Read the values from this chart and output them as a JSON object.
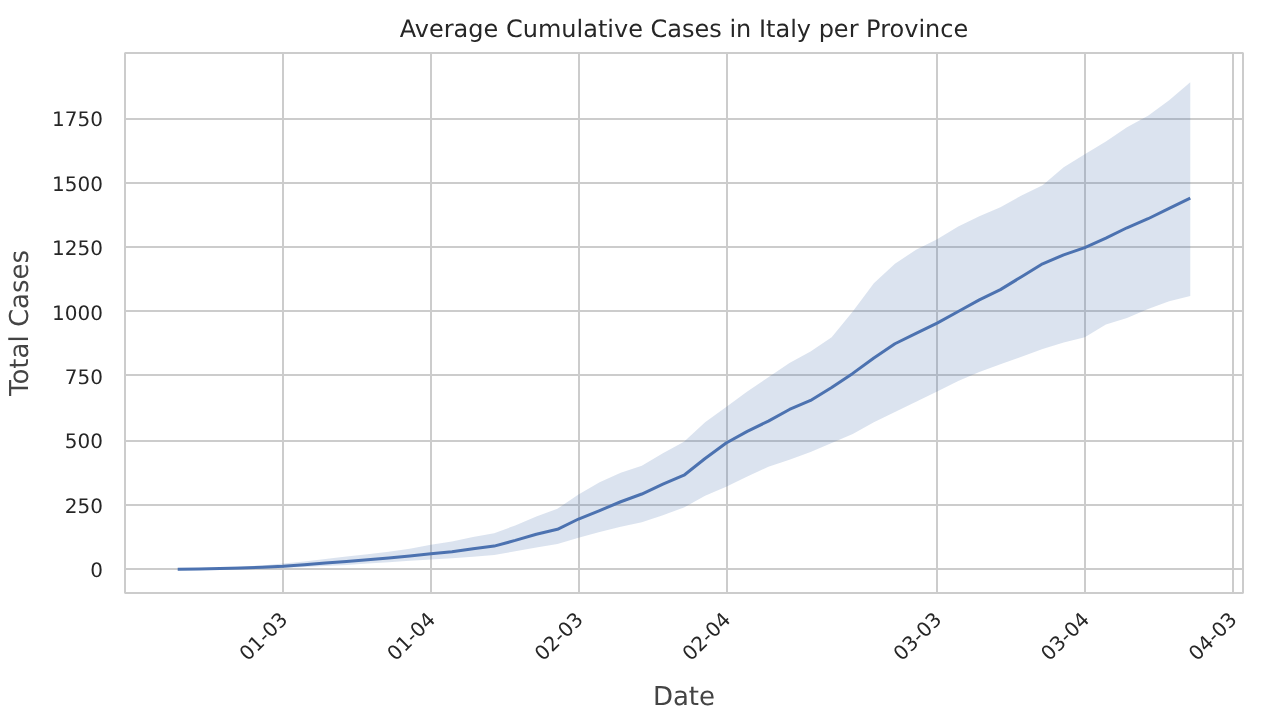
{
  "chart_data": {
    "type": "line",
    "title": "Average Cumulative Cases in Italy per Province",
    "xlabel": "Date",
    "ylabel": "Total Cases",
    "ylim": [
      -92,
      2003
    ],
    "yticks": [
      0,
      250,
      500,
      750,
      1000,
      1250,
      1500,
      1750
    ],
    "grid": true,
    "categories": [
      null,
      null,
      null,
      null,
      null,
      "01-03",
      null,
      null,
      null,
      null,
      null,
      null,
      "01-04",
      null,
      null,
      null,
      null,
      null,
      null,
      "02-03",
      null,
      null,
      null,
      null,
      null,
      null,
      "02-04",
      null,
      null,
      null,
      null,
      null,
      null,
      null,
      null,
      null,
      "03-03",
      null,
      null,
      null,
      null,
      null,
      null,
      "03-04",
      null,
      null,
      null,
      null,
      null,
      null,
      "04-03"
    ],
    "series": [
      {
        "color": "#4c72b0",
        "values": [
          0,
          1,
          3,
          5,
          8,
          12,
          18,
          24,
          30,
          37,
          44,
          52,
          60,
          68,
          80,
          90,
          112,
          136,
          155,
          195,
          228,
          262,
          292,
          330,
          365,
          430,
          490,
          535,
          575,
          620,
          655,
          705,
          760,
          820,
          875,
          915,
          955,
          1000,
          1045,
          1085,
          1135,
          1185,
          1220,
          1248,
          1285,
          1325,
          1360,
          1400,
          1440,
          null,
          null
        ],
        "lower": [
          -5,
          -3,
          0,
          1,
          3,
          5,
          9,
          13,
          17,
          22,
          27,
          33,
          38,
          43,
          49,
          55,
          70,
          85,
          98,
          122,
          145,
          165,
          182,
          210,
          240,
          285,
          320,
          360,
          398,
          425,
          455,
          490,
          525,
          570,
          610,
          650,
          690,
          730,
          765,
          795,
          825,
          855,
          880,
          900,
          950,
          975,
          1010,
          1040,
          1060,
          null,
          null
        ],
        "upper": [
          5,
          5,
          6,
          10,
          15,
          22,
          30,
          40,
          50,
          58,
          68,
          80,
          95,
          108,
          125,
          140,
          170,
          205,
          235,
          290,
          338,
          375,
          402,
          450,
          495,
          570,
          630,
          690,
          745,
          800,
          845,
          900,
          1000,
          1110,
          1185,
          1240,
          1280,
          1330,
          1370,
          1405,
          1450,
          1490,
          1560,
          1610,
          1660,
          1715,
          1760,
          1820,
          1890,
          null,
          null
        ]
      }
    ]
  }
}
